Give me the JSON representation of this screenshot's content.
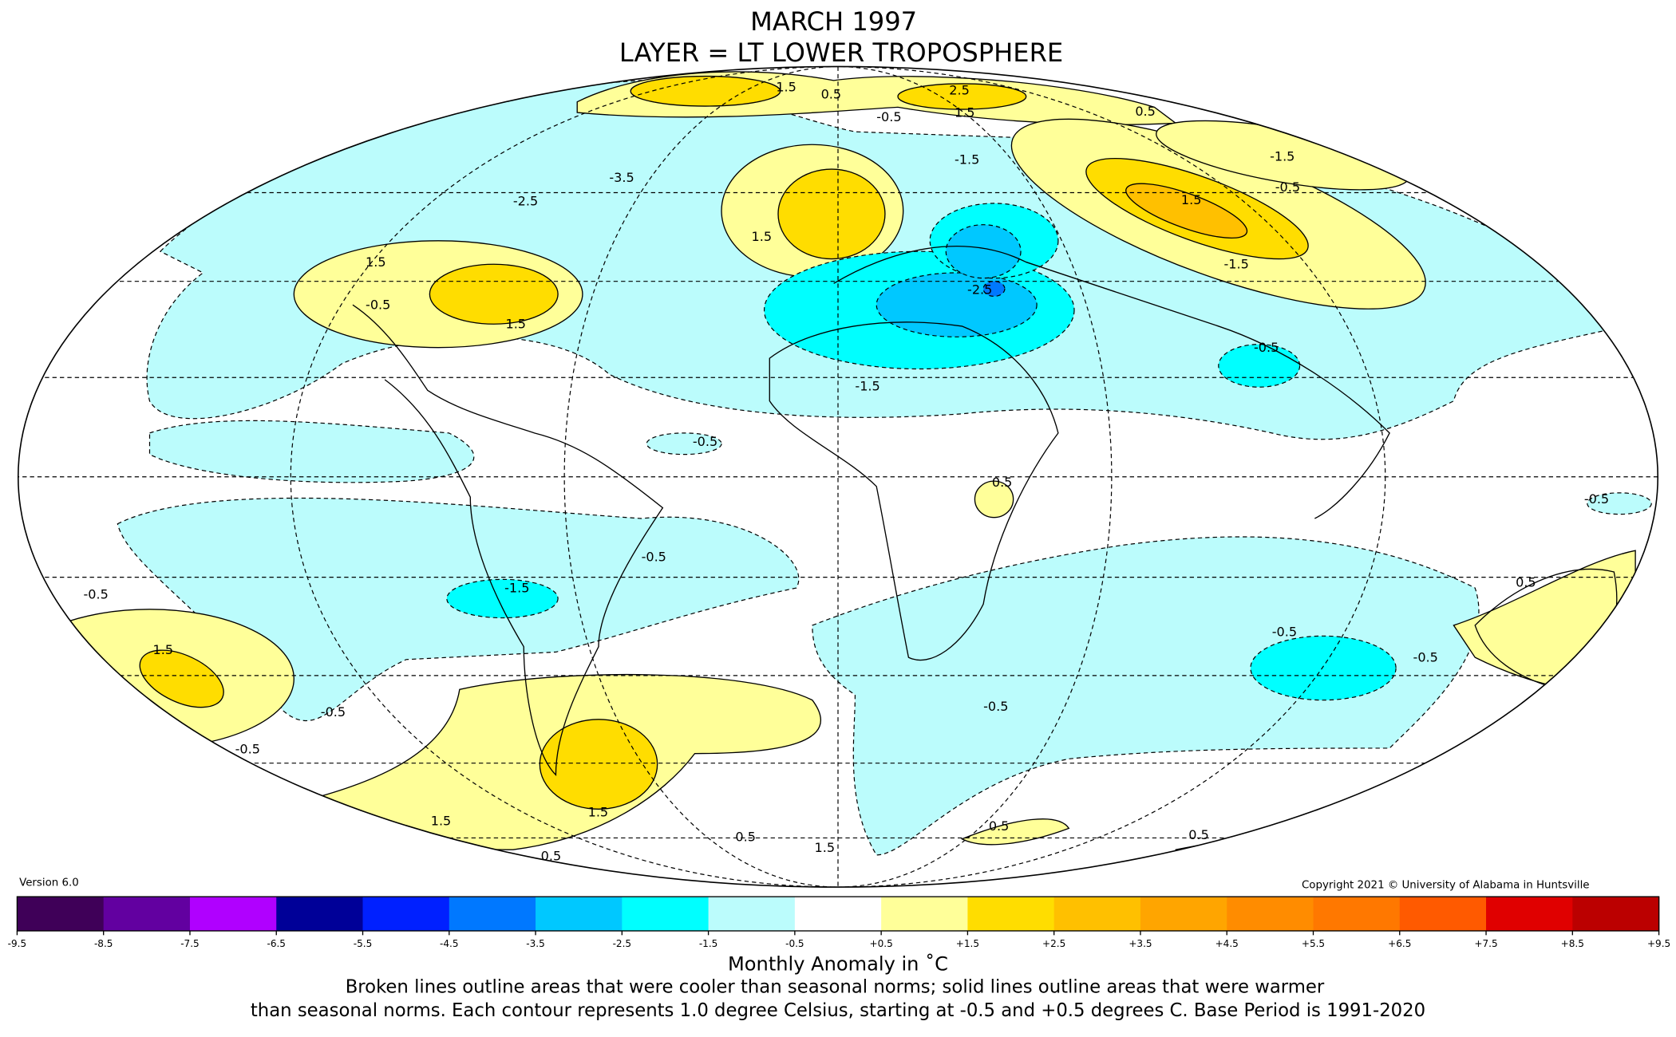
{
  "title": "MARCH 1997",
  "subtitle": "LAYER = LT LOWER TROPOSPHERE",
  "version": "Version 6.0",
  "copyright": "Copyright 2021 © University of Alabama in Huntsville",
  "colorbar": {
    "ticks": [
      "-9.5",
      "-8.5",
      "-7.5",
      "-6.5",
      "-5.5",
      "-4.5",
      "-3.5",
      "-2.5",
      "-1.5",
      "-0.5",
      "+0.5",
      "+1.5",
      "+2.5",
      "+3.5",
      "+4.5",
      "+5.5",
      "+6.5",
      "+7.5",
      "+8.5",
      "+9.5"
    ],
    "colors": [
      "#3f0058",
      "#6200a0",
      "#b000ff",
      "#000098",
      "#0020ff",
      "#0078ff",
      "#00c8ff",
      "#00ffff",
      "#bbfcfc",
      "#ffffff",
      "#ffff99",
      "#ffdd00",
      "#ffc000",
      "#ffa500",
      "#ff8c00",
      "#ff7800",
      "#ff5a00",
      "#e00000",
      "#bb0000"
    ],
    "label": "Monthly Anomaly in ˚C"
  },
  "caption": {
    "line1": "Broken lines outline areas that were cooler than seasonal norms; solid lines outline areas that were warmer",
    "line2": "than seasonal norms. Each contour represents 1.0 degree Celsius, starting at -0.5 and +0.5 degrees C. Base Period is 1991-2020"
  },
  "contour_labels": [
    "1.5",
    "0.5",
    "2.5",
    "1.5",
    "-0.5",
    "-1.5",
    "-2.5",
    "-3.5",
    "1.5",
    "1.5",
    "-0.5",
    "1.5",
    "-1.5",
    "-2.5",
    "-0.5",
    "-1.5",
    "-0.5",
    "1.5",
    "-1.5",
    "0.5",
    "-0.5",
    "1.5",
    "-0.5",
    "-0.5",
    "1.5",
    "-1.5",
    "-0.5",
    "-0.5",
    "1.5",
    "0.5",
    "1.5",
    "0.5",
    "-0.5",
    "0.5",
    "0.5",
    "0.5",
    "0.5",
    "-0.5",
    "-0.5",
    "-0.5"
  ]
}
